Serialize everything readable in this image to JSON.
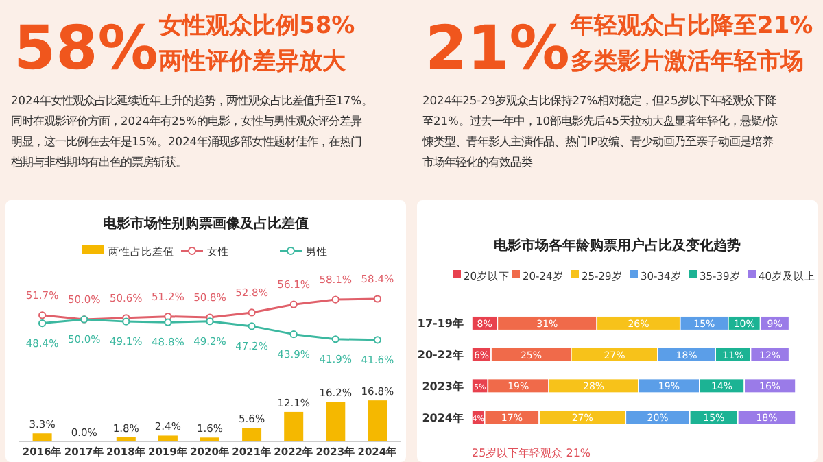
{
  "chart_data": [
    {
      "type": "other",
      "title": "58%",
      "subtitle": "女性观众比例58%\n两性评价差异放大",
      "annotations": [
        "2024年女性观众占比延续近年上升的趋势，两性观众占比差值升至17%。",
        "同时在观影评价方面，2024年有25%的电影，女性与男性观众评分差异",
        "明显，这一比例在去年是15%。2024年涌现多部女性题材佳作，在热门",
        "档期与非档期均有出色的票房斩获。"
      ]
    },
    {
      "type": "other",
      "title": "21%",
      "subtitle": "年轻观众占比降至21%\n多类影片激活年轻市场",
      "annotations": [
        "2024年25-29岁观众占比保持27%相对稳定，但25岁以下年轻观众下降",
        "至21%。过去一年中，10部电影先后45天拉动大盘显著年轻化，悬疑/惊",
        "悚类型、青年影人主演作品、热门IP改编、青少动画乃至亲子动画是培养",
        "市场年轻化的有效品类"
      ]
    },
    {
      "type": "bar",
      "title": "电影市场性别购票画像及占比差值",
      "legend": "top",
      "marker": "circle",
      "categories": [
        "2016年",
        "2017年",
        "2018年",
        "2019年",
        "2020年",
        "2021年",
        "2022年",
        "2023年",
        "2024年"
      ],
      "series": [
        {
          "name": "两性占比差值",
          "color": "#f5b800",
          "values": [
            3.3,
            0.0,
            1.8,
            2.4,
            1.6,
            5.6,
            12.1,
            16.2,
            16.8
          ],
          "value_labels": [
            "3.3%",
            "0.0%",
            "1.8%",
            "2.4%",
            "1.6%",
            "5.6%",
            "12.1%",
            "16.2%",
            "16.8%"
          ]
        },
        {
          "name": "女性",
          "type": "line",
          "color": "#e0606a",
          "values": [
            51.7,
            50.0,
            50.6,
            51.2,
            50.8,
            52.8,
            56.1,
            58.1,
            58.4
          ],
          "value_labels": [
            "51.7%",
            "50.0%",
            "50.6%",
            "51.2%",
            "50.8%",
            "52.8%",
            "56.1%",
            "58.1%",
            "58.4%"
          ]
        },
        {
          "name": "男性",
          "type": "line",
          "color": "#3cb8a0",
          "values": [
            48.4,
            50.0,
            49.1,
            48.8,
            49.2,
            47.2,
            43.9,
            41.9,
            41.6
          ],
          "value_labels": [
            "48.4%",
            "50.0%",
            "49.1%",
            "48.8%",
            "49.2%",
            "47.2%",
            "43.9%",
            "41.9%",
            "41.6%"
          ]
        }
      ]
    },
    {
      "type": "bar",
      "orientation": "horizontal",
      "stacked": true,
      "title": "电影市场各年龄购票用户占比及变化趋势",
      "legend": "top",
      "categories": [
        "17-19年",
        "20-22年",
        "2023年",
        "2024年"
      ],
      "series": [
        {
          "name": "20岁以下",
          "color": "#e8414e",
          "values": [
            8,
            6,
            5,
            4
          ],
          "value_labels": [
            "8%",
            "6%",
            "5%",
            "4%"
          ]
        },
        {
          "name": "20-24岁",
          "color": "#f06a4a",
          "values": [
            31,
            25,
            19,
            17
          ],
          "value_labels": [
            "31%",
            "25%",
            "19%",
            "17%"
          ]
        },
        {
          "name": "25-29岁",
          "color": "#f7c21a",
          "values": [
            26,
            27,
            28,
            27
          ],
          "value_labels": [
            "26%",
            "27%",
            "28%",
            "27%"
          ]
        },
        {
          "name": "30-34岁",
          "color": "#5b9ee8",
          "values": [
            15,
            18,
            19,
            20
          ],
          "value_labels": [
            "15%",
            "18%",
            "19%",
            "20%"
          ]
        },
        {
          "name": "35-39岁",
          "color": "#1cb394",
          "values": [
            10,
            11,
            14,
            15
          ],
          "value_labels": [
            "10%",
            "11%",
            "14%",
            "15%"
          ]
        },
        {
          "name": "40岁及以上",
          "color": "#9a7be8",
          "values": [
            9,
            12,
            16,
            18
          ],
          "value_labels": [
            "9%",
            "12%",
            "16%",
            "18%"
          ]
        }
      ],
      "annotations": [
        "25岁以下年轻观众 21%"
      ]
    }
  ]
}
